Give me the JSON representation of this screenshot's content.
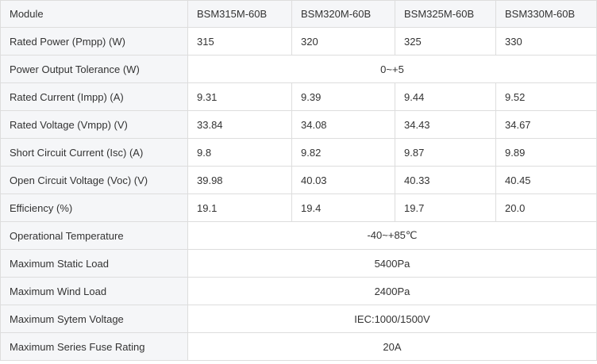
{
  "table": {
    "headers": [
      "Module",
      "BSM315M-60B",
      "BSM320M-60B",
      "BSM325M-60B",
      "BSM330M-60B"
    ],
    "rows": [
      {
        "label": "Rated Power (Pmpp) (W)",
        "values": [
          "315",
          "320",
          "325",
          "330"
        ]
      },
      {
        "label": "Power Output Tolerance (W)",
        "merged": "0~+5"
      },
      {
        "label": "Rated Current (Impp) (A)",
        "values": [
          "9.31",
          "9.39",
          "9.44",
          "9.52"
        ]
      },
      {
        "label": "Rated Voltage (Vmpp) (V)",
        "values": [
          "33.84",
          "34.08",
          "34.43",
          "34.67"
        ]
      },
      {
        "label": "Short Circuit Current (Isc) (A)",
        "values": [
          "9.8",
          "9.82",
          "9.87",
          "9.89"
        ]
      },
      {
        "label": "Open Circuit Voltage (Voc) (V)",
        "values": [
          "39.98",
          "40.03",
          "40.33",
          "40.45"
        ]
      },
      {
        "label": "Efficiency (%)",
        "values": [
          "19.1",
          "19.4",
          "19.7",
          "20.0"
        ]
      },
      {
        "label": "Operational Temperature",
        "merged": "-40~+85℃"
      },
      {
        "label": "Maximum Static Load",
        "merged": "5400Pa"
      },
      {
        "label": "Maximum Wind Load",
        "merged": "2400Pa"
      },
      {
        "label": "Maximum Sytem Voltage",
        "merged": "IEC:1000/1500V"
      },
      {
        "label": "Maximum Series Fuse Rating",
        "merged": "20A"
      }
    ]
  }
}
